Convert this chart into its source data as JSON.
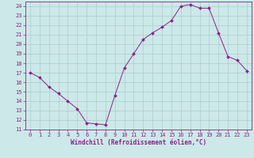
{
  "x": [
    0,
    1,
    2,
    3,
    4,
    5,
    6,
    7,
    8,
    9,
    10,
    11,
    12,
    13,
    14,
    15,
    16,
    17,
    18,
    19,
    20,
    21,
    22,
    23
  ],
  "y": [
    17,
    16.5,
    15.5,
    14.8,
    14.0,
    13.2,
    11.7,
    11.6,
    11.5,
    14.6,
    17.5,
    19.0,
    20.5,
    21.2,
    21.8,
    22.5,
    24.0,
    24.2,
    23.8,
    23.8,
    21.2,
    18.7,
    18.3,
    17.2
  ],
  "line_color": "#882288",
  "marker": "D",
  "marker_size": 2.0,
  "bg_color": "#cce8e8",
  "grid_color": "#aacccc",
  "xlabel": "Windchill (Refroidissement éolien,°C)",
  "ylim": [
    11,
    24.5
  ],
  "xlim": [
    -0.5,
    23.5
  ],
  "yticks": [
    11,
    12,
    13,
    14,
    15,
    16,
    17,
    18,
    19,
    20,
    21,
    22,
    23,
    24
  ],
  "xticks": [
    0,
    1,
    2,
    3,
    4,
    5,
    6,
    7,
    8,
    9,
    10,
    11,
    12,
    13,
    14,
    15,
    16,
    17,
    18,
    19,
    20,
    21,
    22,
    23
  ],
  "tick_color": "#882288",
  "label_color": "#882288",
  "xlabel_fontsize": 5.5,
  "tick_fontsize": 5.0
}
